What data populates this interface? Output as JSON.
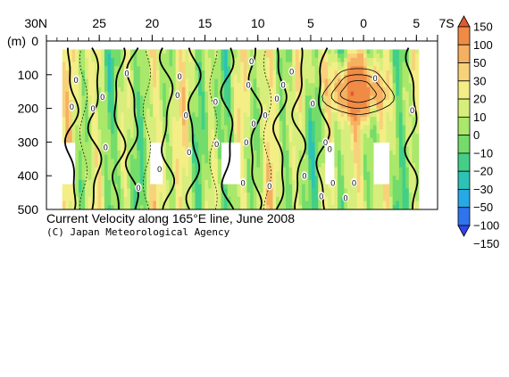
{
  "chart_data": {
    "type": "heatmap",
    "title": "Current Velocity along 165°E line, June 2008",
    "credit": "(C) Japan Meteorological Agency",
    "ylabel": "(m)",
    "x_ticks": [
      "30N",
      "25",
      "20",
      "15",
      "10",
      "5",
      "0",
      "5",
      "7S"
    ],
    "x_range_lat": [
      30,
      -7
    ],
    "y_ticks": [
      "0",
      "100",
      "200",
      "300",
      "400",
      "500"
    ],
    "y_range_m": [
      0,
      500
    ],
    "colorbar": {
      "labels": [
        "150",
        "100",
        "50",
        "30",
        "20",
        "10",
        "0",
        "−10",
        "−20",
        "−30",
        "−50",
        "−100",
        "−150"
      ],
      "colors": [
        "#e05a30",
        "#f08b45",
        "#f5b060",
        "#f8d27a",
        "#f3ee86",
        "#d8ee7c",
        "#a9e86a",
        "#74dc6a",
        "#43cf87",
        "#2cc3b6",
        "#27a9e6",
        "#2f74ee",
        "#3145e8"
      ]
    },
    "contour_label": "0",
    "features": [
      {
        "name": "undercurrent core",
        "lat": 0,
        "depth_m": 150,
        "value_cm_s": 70
      }
    ]
  }
}
